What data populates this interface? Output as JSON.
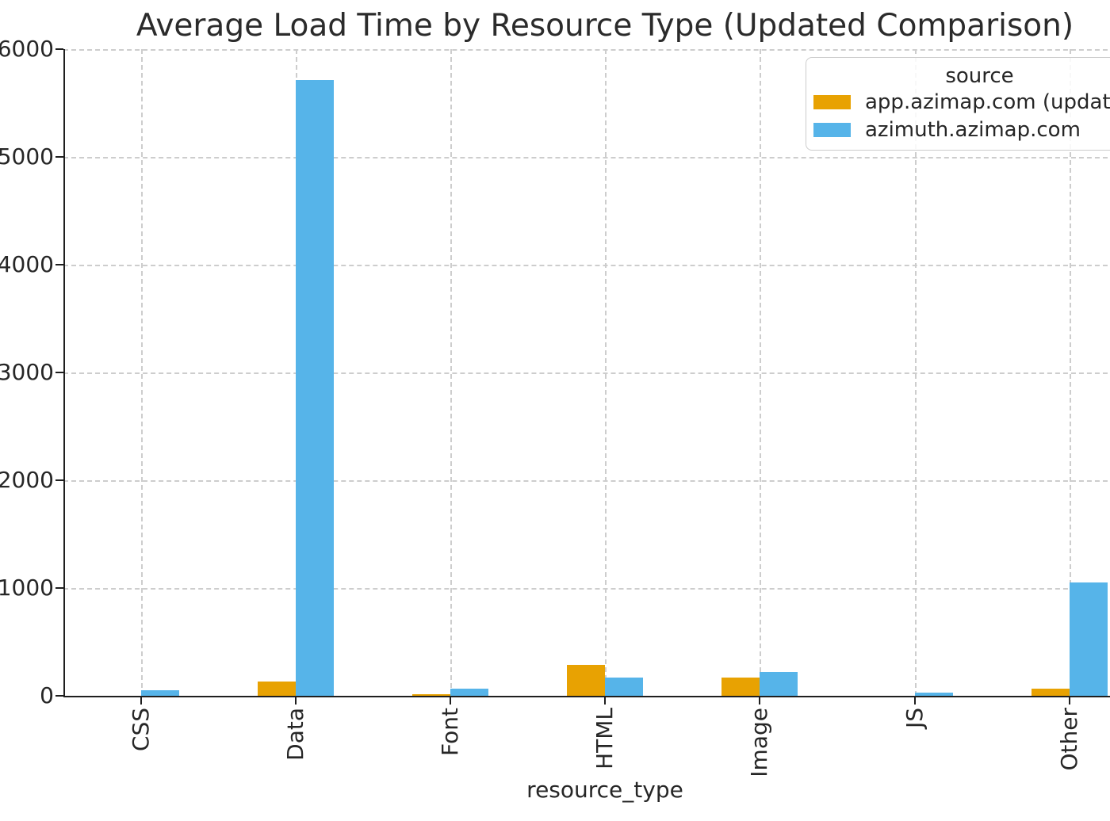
{
  "chart_data": {
    "type": "bar",
    "title": "Average Load Time by Resource Type (Updated Comparison)",
    "xlabel": "resource_type",
    "ylabel": "",
    "categories": [
      "CSS",
      "Data",
      "Font",
      "HTML",
      "Image",
      "JS",
      "Other"
    ],
    "series": [
      {
        "name": "app.azimap.com (updated)",
        "color": "#E8A202",
        "values": [
          2,
          135,
          15,
          290,
          170,
          2,
          65
        ]
      },
      {
        "name": "azimuth.azimap.com",
        "color": "#56B4E9",
        "values": [
          55,
          5715,
          65,
          170,
          220,
          30,
          1050
        ]
      }
    ],
    "ylim": [
      0,
      6000
    ],
    "yticks": [
      0,
      1000,
      2000,
      3000,
      4000,
      5000,
      6000
    ],
    "grid": true,
    "grid_style": "dashed",
    "legend_title": "source",
    "legend_position": "upper right",
    "bar_orientation": "vertical",
    "x_tick_rotation_deg": 90
  }
}
